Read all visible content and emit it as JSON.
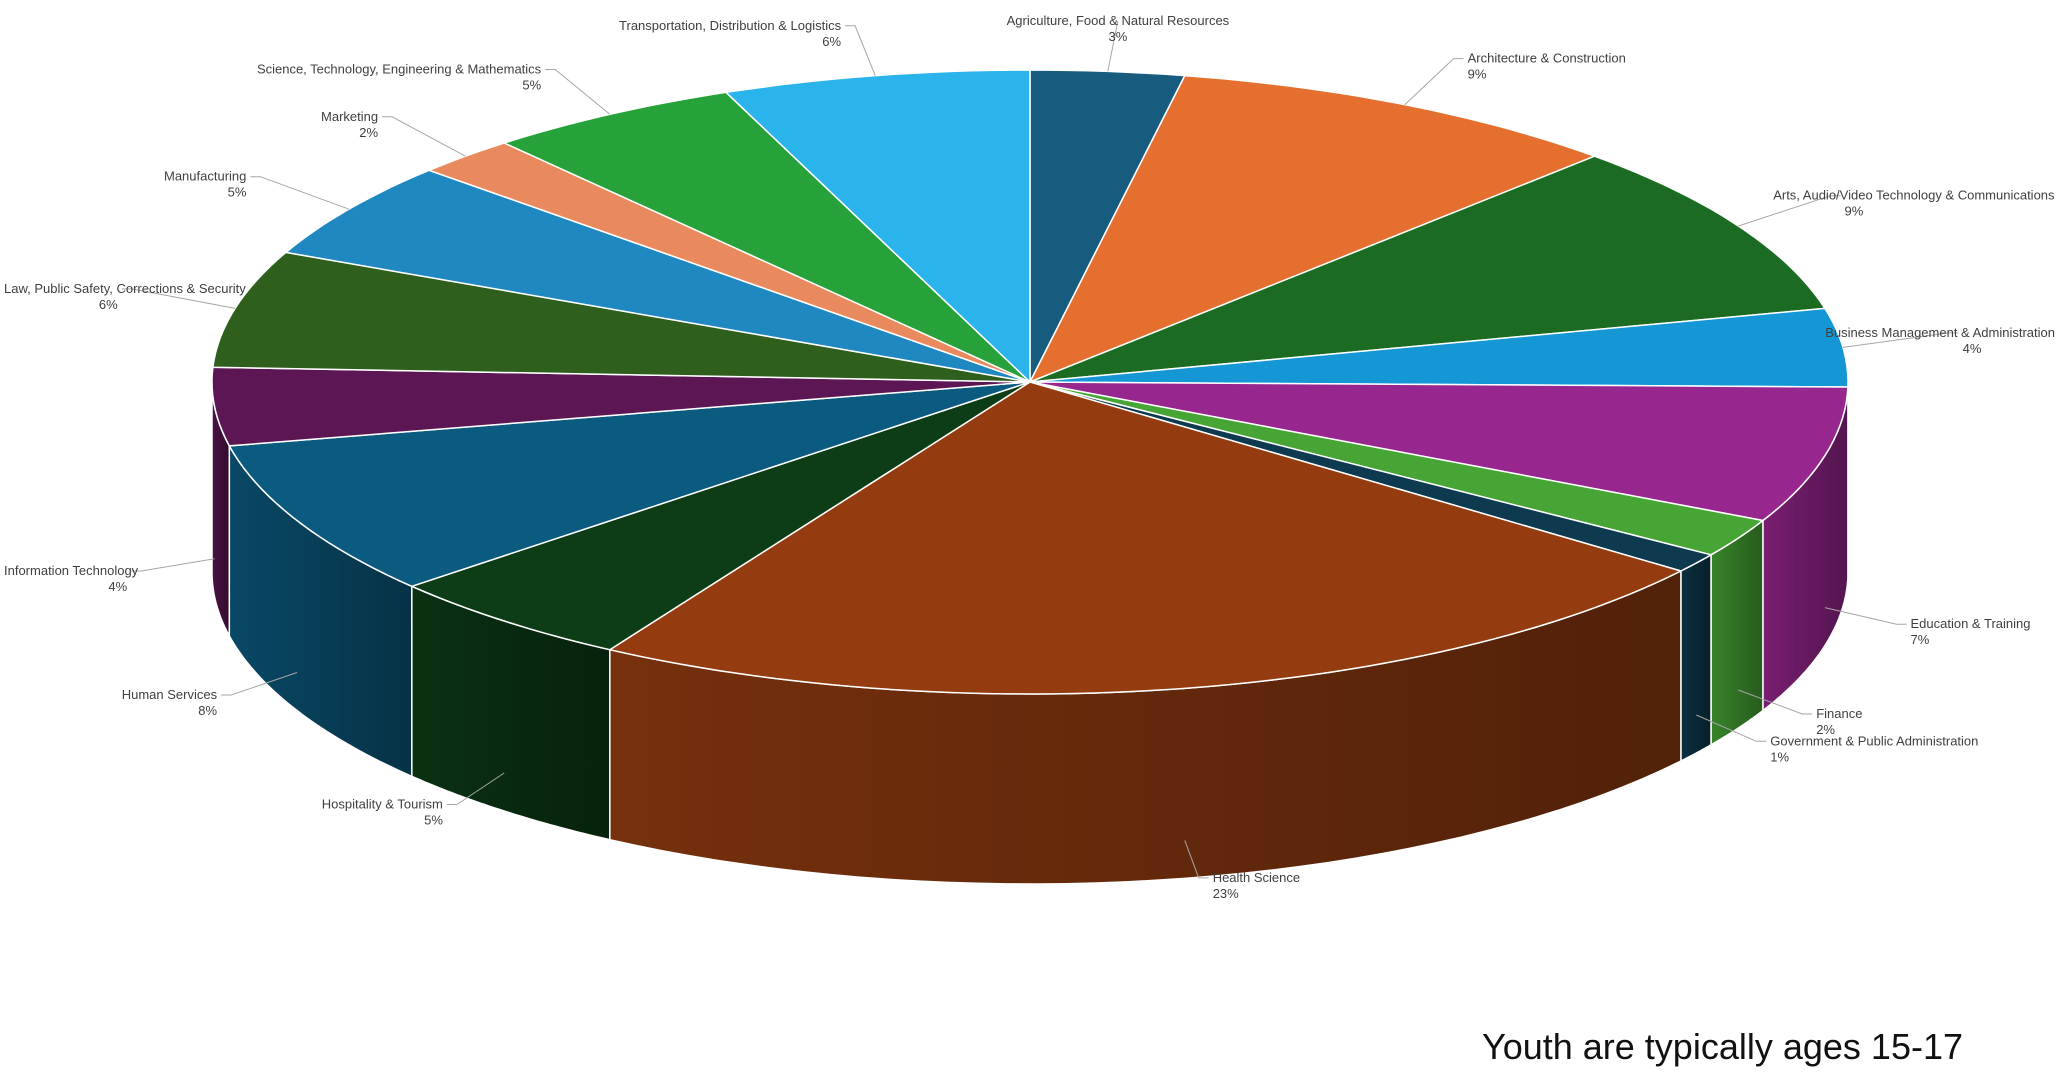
{
  "chart_data": {
    "type": "pie",
    "title": "",
    "slices": [
      {
        "label": "Agriculture, Food & Natural Resources",
        "value": 3,
        "value_label": "3%",
        "color": "#175c7f"
      },
      {
        "label": "Architecture & Construction",
        "value": 9,
        "value_label": "9%",
        "color": "#e46f2f"
      },
      {
        "label": "Arts, Audio/Video Technology & Communications",
        "value": 9,
        "value_label": "9%",
        "color": "#1b6b22"
      },
      {
        "label": "Business Management & Administration",
        "value": 4,
        "value_label": "4%",
        "color": "#1597d6"
      },
      {
        "label": "Education & Training",
        "value": 7,
        "value_label": "7%",
        "color": "#97268f"
      },
      {
        "label": "Finance",
        "value": 2,
        "value_label": "2%",
        "color": "#46a534"
      },
      {
        "label": "Government & Public Administration",
        "value": 1,
        "value_label": "1%",
        "color": "#0d3a4f"
      },
      {
        "label": "Health Science",
        "value": 23,
        "value_label": "23%",
        "color": "#943c10"
      },
      {
        "label": "Hospitality & Tourism",
        "value": 5,
        "value_label": "5%",
        "color": "#0c3d16"
      },
      {
        "label": "Human Services",
        "value": 8,
        "value_label": "8%",
        "color": "#0b5a80"
      },
      {
        "label": "Information Technology",
        "value": 4,
        "value_label": "4%",
        "color": "#5c1654"
      },
      {
        "label": "Law, Public Safety, Corrections & Security",
        "value": 6,
        "value_label": "6%",
        "color": "#2f5f1d"
      },
      {
        "label": "Manufacturing",
        "value": 5,
        "value_label": "5%",
        "color": "#2088c0"
      },
      {
        "label": "Marketing",
        "value": 2,
        "value_label": "2%",
        "color": "#e88a5e"
      },
      {
        "label": "Science, Technology, Engineering & Mathematics",
        "value": 5,
        "value_label": "5%",
        "color": "#27a23b"
      },
      {
        "label": "Transportation, Distribution & Logistics",
        "value": 6,
        "value_label": "6%",
        "color": "#2bb3ec"
      }
    ],
    "legend": "none",
    "data_labels": "outside with leader lines"
  },
  "note": "Youth are typically ages 15-17"
}
